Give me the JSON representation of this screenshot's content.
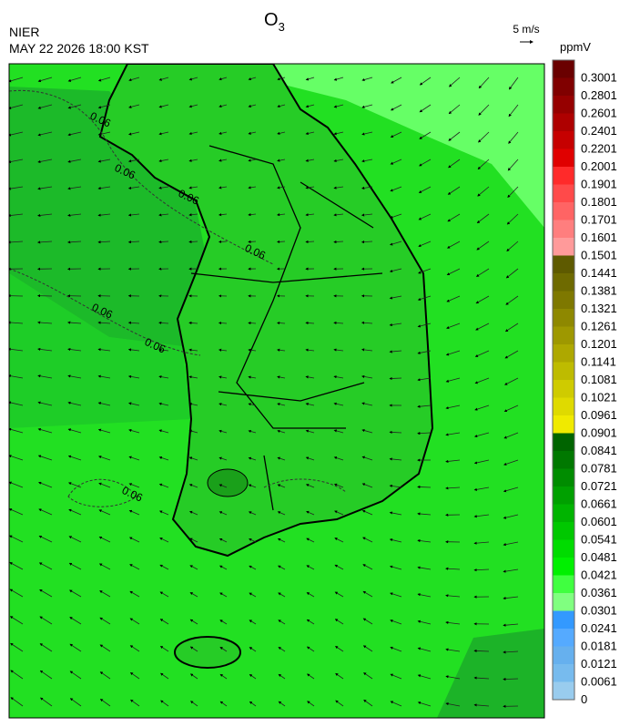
{
  "header": {
    "agency": "NIER",
    "datetime": "MAY 22 2026 18:00 KST",
    "title": {
      "text": "O",
      "subscript": "3"
    },
    "vector_scale": "5 m/s"
  },
  "legend": {
    "unit": "ppmV",
    "levels": [
      0.3001,
      0.2801,
      0.2601,
      0.2401,
      0.2201,
      0.2001,
      0.1901,
      0.1801,
      0.1701,
      0.1601,
      0.1501,
      0.1441,
      0.1381,
      0.1321,
      0.1261,
      0.1201,
      0.1141,
      0.1081,
      0.1021,
      0.0961,
      0.0901,
      0.0841,
      0.0781,
      0.0721,
      0.0661,
      0.0601,
      0.0541,
      0.0481,
      0.0421,
      0.0361,
      0.0301,
      0.0241,
      0.0181,
      0.0121,
      0.0061,
      0
    ],
    "colors": [
      "#6a0000",
      "#800000",
      "#960000",
      "#ae0000",
      "#c60000",
      "#e00000",
      "#ff2a2a",
      "#ff4a4a",
      "#ff6464",
      "#ff7e7e",
      "#ff9a9a",
      "#5e5a00",
      "#6e6a00",
      "#7e7800",
      "#8e8800",
      "#9e9800",
      "#aea800",
      "#bebb00",
      "#cfcb00",
      "#dfda00",
      "#f0ea00",
      "#006400",
      "#007800",
      "#008c00",
      "#00a000",
      "#00b400",
      "#00c800",
      "#00dc00",
      "#00f000",
      "#40ff40",
      "#80ff80",
      "#3399ff",
      "#55aaff",
      "#66b0ee",
      "#77bbee",
      "#99ccee"
    ]
  },
  "map": {
    "contour_labels": [
      "0.06",
      "0.06",
      "0.06",
      "0.06",
      "0.06",
      "0.06",
      "0.06"
    ]
  }
}
